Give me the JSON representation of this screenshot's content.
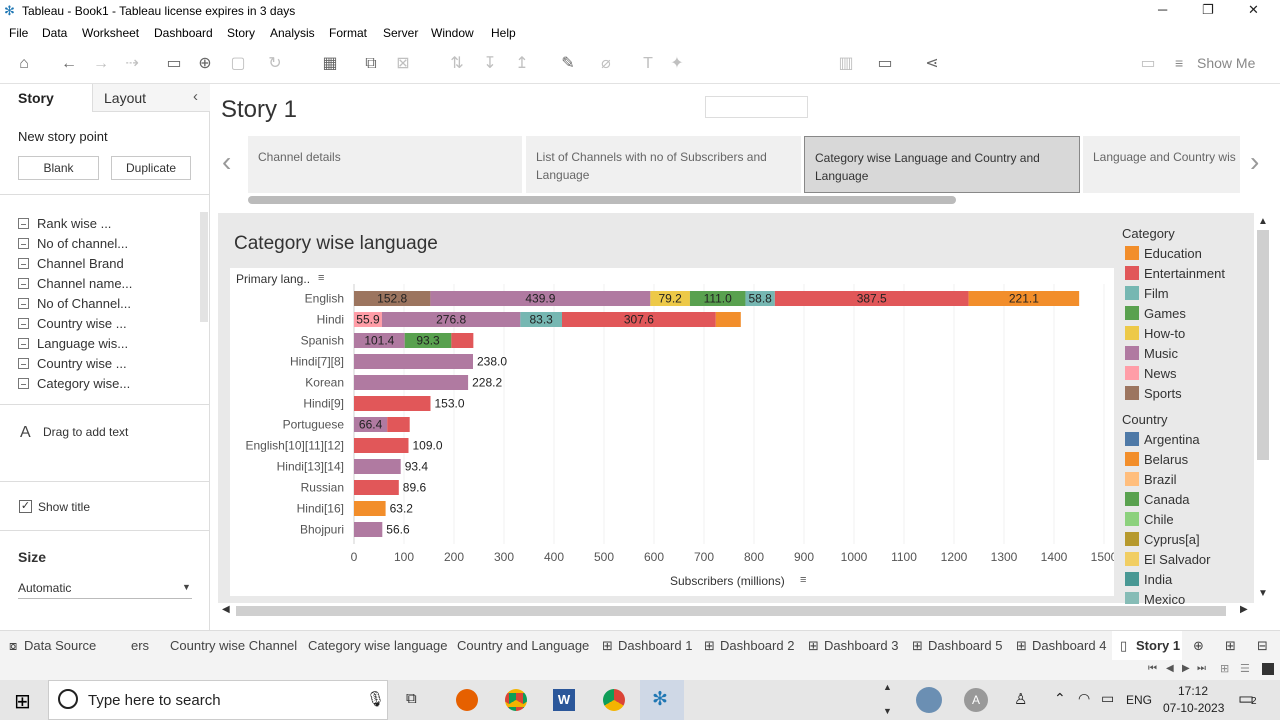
{
  "window": {
    "title": "Tableau - Book1 - Tableau license expires in 3 days",
    "minimize": "─",
    "restore": "❐",
    "close": "✕"
  },
  "menu": [
    "File",
    "Data",
    "Worksheet",
    "Dashboard",
    "Story",
    "Analysis",
    "Format",
    "Server",
    "Window",
    "Help"
  ],
  "toolbar": {
    "show_me": "Show Me"
  },
  "left_panel": {
    "tab_story": "Story",
    "tab_layout": "Layout",
    "new_story_point": "New story point",
    "blank_button": "Blank",
    "duplicate_button": "Duplicate",
    "sheets": [
      "Rank wise ...",
      "No of channel...",
      "Channel Brand",
      "Channel name...",
      "No of Channel...",
      "Country wise ...",
      "Language wis...",
      "Country wise ...",
      "Category wise..."
    ],
    "drag_text": "Drag to add text",
    "show_title": "Show title",
    "size_label": "Size",
    "size_value": "Automatic"
  },
  "story": {
    "title": "Story 1",
    "points": [
      "Channel details",
      "List of Channels with no of Subscribers and Language",
      "Category  wise Language and Country and Language",
      "Language and Country wis"
    ],
    "active_point": 2
  },
  "viz": {
    "title": "Category wise language",
    "row_header": "Primary lang..",
    "x_axis_label": "Subscribers (millions)"
  },
  "legend": {
    "category_title": "Category",
    "category_items": [
      {
        "label": "Education",
        "color": "#f28e2b"
      },
      {
        "label": "Entertainment",
        "color": "#e15759"
      },
      {
        "label": "Film",
        "color": "#76b7b2"
      },
      {
        "label": "Games",
        "color": "#59a14f"
      },
      {
        "label": "How-to",
        "color": "#edc948"
      },
      {
        "label": "Music",
        "color": "#b07aa1"
      },
      {
        "label": "News",
        "color": "#ff9da7"
      },
      {
        "label": "Sports",
        "color": "#9c755f"
      }
    ],
    "country_title": "Country",
    "country_items": [
      {
        "label": "Argentina",
        "color": "#4e79a7"
      },
      {
        "label": "Belarus",
        "color": "#f28e2b"
      },
      {
        "label": "Brazil",
        "color": "#ffbe7d"
      },
      {
        "label": "Canada",
        "color": "#59a14f"
      },
      {
        "label": "Chile",
        "color": "#8cd17d"
      },
      {
        "label": "Cyprus[a]",
        "color": "#b6992d"
      },
      {
        "label": "El Salvador",
        "color": "#f1ce63"
      },
      {
        "label": "India",
        "color": "#499894"
      },
      {
        "label": "Mexico",
        "color": "#86bcb6"
      }
    ]
  },
  "chart_data": {
    "type": "bar",
    "orientation": "horizontal",
    "stacked": true,
    "xlabel": "Subscribers (millions)",
    "ylabel": "Primary lang..",
    "xlim": [
      0,
      1500
    ],
    "xticks": [
      0,
      100,
      200,
      300,
      400,
      500,
      600,
      700,
      800,
      900,
      1000,
      1100,
      1200,
      1300,
      1400,
      1500
    ],
    "grid": true,
    "rows": [
      {
        "label": "English",
        "segments": [
          {
            "category": "Sports",
            "color": "#9c755f",
            "value": 152.8,
            "text": "152.8"
          },
          {
            "category": "Music",
            "color": "#b07aa1",
            "value": 439.9,
            "text": "439.9"
          },
          {
            "category": "How-to",
            "color": "#edc948",
            "value": 79.2,
            "text": "79.2"
          },
          {
            "category": "Games",
            "color": "#59a14f",
            "value": 111.0,
            "text": "111.0"
          },
          {
            "category": "Film",
            "color": "#76b7b2",
            "value": 58.8,
            "text": "58.8"
          },
          {
            "category": "Entertainment",
            "color": "#e15759",
            "value": 387.5,
            "text": "387.5"
          },
          {
            "category": "Education",
            "color": "#f28e2b",
            "value": 221.1,
            "text": "221.1"
          }
        ],
        "total_label": ""
      },
      {
        "label": "Hindi",
        "segments": [
          {
            "category": "News",
            "color": "#ff9da7",
            "value": 55.9,
            "text": "55.9"
          },
          {
            "category": "Music",
            "color": "#b07aa1",
            "value": 276.8,
            "text": "276.8"
          },
          {
            "category": "Film",
            "color": "#76b7b2",
            "value": 83.3,
            "text": "83.3"
          },
          {
            "category": "Entertainment",
            "color": "#e15759",
            "value": 307.6,
            "text": "307.6"
          },
          {
            "category": "Education",
            "color": "#f28e2b",
            "value": 50,
            "text": ""
          }
        ],
        "total_label": ""
      },
      {
        "label": "Spanish",
        "segments": [
          {
            "category": "Music",
            "color": "#b07aa1",
            "value": 101.4,
            "text": "101.4"
          },
          {
            "category": "Games",
            "color": "#59a14f",
            "value": 93.3,
            "text": "93.3"
          },
          {
            "category": "Entertainment",
            "color": "#e15759",
            "value": 44,
            "text": ""
          }
        ],
        "total_label": ""
      },
      {
        "label": "Hindi[7][8]",
        "segments": [
          {
            "category": "Music",
            "color": "#b07aa1",
            "value": 238.0,
            "text": ""
          }
        ],
        "total_label": "238.0"
      },
      {
        "label": "Korean",
        "segments": [
          {
            "category": "Music",
            "color": "#b07aa1",
            "value": 228.2,
            "text": ""
          }
        ],
        "total_label": "228.2"
      },
      {
        "label": "Hindi[9]",
        "segments": [
          {
            "category": "Entertainment",
            "color": "#e15759",
            "value": 153.0,
            "text": ""
          }
        ],
        "total_label": "153.0"
      },
      {
        "label": "Portuguese",
        "segments": [
          {
            "category": "Music",
            "color": "#b07aa1",
            "value": 66.4,
            "text": "66.4"
          },
          {
            "category": "Entertainment",
            "color": "#e15759",
            "value": 45,
            "text": ""
          }
        ],
        "total_label": ""
      },
      {
        "label": "English[10][11][12]",
        "segments": [
          {
            "category": "Entertainment",
            "color": "#e15759",
            "value": 109.0,
            "text": ""
          }
        ],
        "total_label": "109.0"
      },
      {
        "label": "Hindi[13][14]",
        "segments": [
          {
            "category": "Music",
            "color": "#b07aa1",
            "value": 93.4,
            "text": ""
          }
        ],
        "total_label": "93.4"
      },
      {
        "label": "Russian",
        "segments": [
          {
            "category": "Entertainment",
            "color": "#e15759",
            "value": 89.6,
            "text": ""
          }
        ],
        "total_label": "89.6"
      },
      {
        "label": "Hindi[16]",
        "segments": [
          {
            "category": "Education",
            "color": "#f28e2b",
            "value": 63.2,
            "text": ""
          }
        ],
        "total_label": "63.2"
      },
      {
        "label": "Bhojpuri",
        "segments": [
          {
            "category": "Music",
            "color": "#b07aa1",
            "value": 56.6,
            "text": ""
          }
        ],
        "total_label": "56.6"
      }
    ]
  },
  "sheet_tabs": [
    "Data Source",
    "ers",
    "Country wise Channel",
    "Category wise language",
    "Country and Language",
    "Dashboard 1",
    "Dashboard 2",
    "Dashboard 3",
    "Dashboard 5",
    "Dashboard 4",
    "Story 1"
  ],
  "taskbar": {
    "search_placeholder": "Type here to search",
    "time": "17:12",
    "date": "07-10-2023",
    "lang": "ENG",
    "notifications": "2"
  }
}
